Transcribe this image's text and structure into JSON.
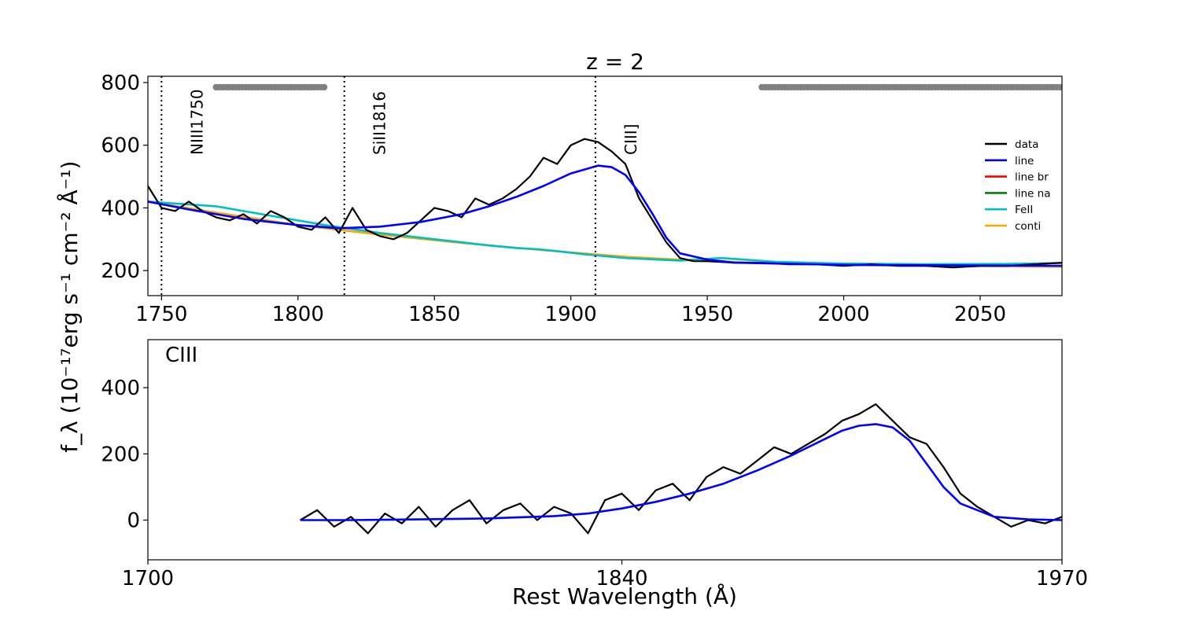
{
  "title": "z = 2",
  "xlabel": "Rest Wavelength (Å)",
  "ylabel": "f_λ (10⁻¹⁷erg s⁻¹ cm⁻² Å⁻¹)",
  "colors": {
    "data": "#000000",
    "line": "#0000ff",
    "line_br": "#ff0000",
    "line_na": "#008000",
    "FeII": "#00bfbf",
    "conti": "#ffa500",
    "mask": "#808080"
  },
  "chart_data": [
    {
      "type": "line",
      "panel": "top",
      "xlim": [
        1745,
        2080
      ],
      "ylim": [
        120,
        820
      ],
      "xticks": [
        1750,
        1800,
        1850,
        1900,
        1950,
        2000,
        2050
      ],
      "yticks": [
        200,
        400,
        600,
        800
      ],
      "legend": {
        "placement": "right",
        "entries": [
          {
            "label": "data",
            "color": "#000000"
          },
          {
            "label": "line",
            "color": "#0000ff"
          },
          {
            "label": "line br",
            "color": "#ff0000"
          },
          {
            "label": "line na",
            "color": "#008000"
          },
          {
            "label": "FeII",
            "color": "#00bfbf"
          },
          {
            "label": "conti",
            "color": "#ffa500"
          }
        ]
      },
      "vlines": [
        {
          "x": 1750,
          "label": "NIII1750"
        },
        {
          "x": 1817,
          "label": "SiII1816"
        },
        {
          "x": 1909,
          "label": "CIII]"
        }
      ],
      "mask_ranges": [
        [
          1770,
          1810
        ],
        [
          1970,
          2080
        ]
      ],
      "mask_y": 785,
      "series": [
        {
          "name": "data",
          "x": [
            1745,
            1750,
            1755,
            1760,
            1765,
            1770,
            1775,
            1780,
            1785,
            1790,
            1795,
            1800,
            1805,
            1810,
            1815,
            1820,
            1825,
            1830,
            1835,
            1840,
            1845,
            1850,
            1855,
            1860,
            1865,
            1870,
            1875,
            1880,
            1885,
            1890,
            1895,
            1900,
            1905,
            1910,
            1915,
            1920,
            1925,
            1930,
            1935,
            1940,
            1945,
            1950,
            1960,
            1970,
            1980,
            1990,
            2000,
            2010,
            2020,
            2030,
            2040,
            2050,
            2060,
            2070,
            2080
          ],
          "y": [
            470,
            400,
            390,
            420,
            390,
            370,
            360,
            380,
            350,
            390,
            370,
            340,
            330,
            370,
            320,
            400,
            330,
            310,
            300,
            320,
            360,
            400,
            390,
            370,
            430,
            410,
            430,
            460,
            500,
            560,
            540,
            600,
            620,
            610,
            580,
            540,
            430,
            360,
            290,
            240,
            230,
            230,
            225,
            225,
            220,
            220,
            215,
            220,
            215,
            215,
            210,
            215,
            215,
            220,
            225
          ]
        },
        {
          "name": "line",
          "x": [
            1745,
            1760,
            1780,
            1800,
            1815,
            1830,
            1845,
            1860,
            1870,
            1880,
            1890,
            1900,
            1910,
            1915,
            1920,
            1925,
            1930,
            1935,
            1940,
            1950,
            1960,
            2000,
            2080
          ],
          "y": [
            420,
            395,
            365,
            345,
            335,
            340,
            355,
            380,
            405,
            435,
            470,
            510,
            535,
            530,
            505,
            450,
            380,
            305,
            255,
            235,
            225,
            218,
            215
          ]
        },
        {
          "name": "FeII",
          "x": [
            1745,
            1770,
            1790,
            1810,
            1830,
            1850,
            1860,
            1870,
            1880,
            1888,
            1895,
            1905,
            1920,
            1940,
            1955,
            1962,
            1975,
            2000,
            2030,
            2060,
            2080
          ],
          "y": [
            420,
            405,
            375,
            345,
            320,
            300,
            290,
            280,
            272,
            268,
            262,
            252,
            240,
            232,
            240,
            236,
            228,
            222,
            220,
            221,
            224
          ]
        },
        {
          "name": "conti",
          "x": [
            1745,
            1770,
            1800,
            1830,
            1860,
            1890,
            1920,
            1950,
            1980,
            2010,
            2040,
            2080
          ],
          "y": [
            420,
            385,
            345,
            315,
            288,
            265,
            244,
            230,
            222,
            217,
            214,
            212
          ]
        }
      ]
    },
    {
      "type": "line",
      "panel": "bottom",
      "annotation": "CIII",
      "xlim": [
        1700,
        1970
      ],
      "ylim": [
        -120,
        545
      ],
      "xticks": [
        1700,
        1840,
        1970
      ],
      "yticks": [
        0,
        200,
        400
      ],
      "series": [
        {
          "name": "data",
          "x": [
            1745,
            1750,
            1755,
            1760,
            1765,
            1770,
            1775,
            1780,
            1785,
            1790,
            1795,
            1800,
            1805,
            1810,
            1815,
            1820,
            1825,
            1830,
            1835,
            1840,
            1845,
            1850,
            1855,
            1860,
            1865,
            1870,
            1875,
            1880,
            1885,
            1890,
            1895,
            1900,
            1905,
            1910,
            1915,
            1920,
            1925,
            1930,
            1935,
            1940,
            1945,
            1950,
            1955,
            1960,
            1965,
            1970
          ],
          "y": [
            0,
            30,
            -20,
            10,
            -40,
            20,
            -10,
            40,
            -20,
            30,
            60,
            -10,
            30,
            50,
            0,
            40,
            20,
            -40,
            60,
            80,
            30,
            90,
            110,
            60,
            130,
            160,
            140,
            180,
            220,
            200,
            230,
            260,
            300,
            320,
            350,
            300,
            250,
            230,
            160,
            80,
            40,
            10,
            -20,
            0,
            -10,
            10
          ]
        },
        {
          "name": "line",
          "x": [
            1745,
            1760,
            1780,
            1800,
            1820,
            1830,
            1840,
            1850,
            1860,
            1870,
            1880,
            1890,
            1900,
            1905,
            1910,
            1915,
            1920,
            1925,
            1930,
            1935,
            1940,
            1950,
            1960,
            1970
          ],
          "y": [
            0,
            0,
            2,
            5,
            12,
            20,
            35,
            55,
            80,
            110,
            150,
            195,
            245,
            270,
            285,
            290,
            280,
            240,
            170,
            100,
            50,
            10,
            2,
            0
          ]
        }
      ]
    }
  ]
}
